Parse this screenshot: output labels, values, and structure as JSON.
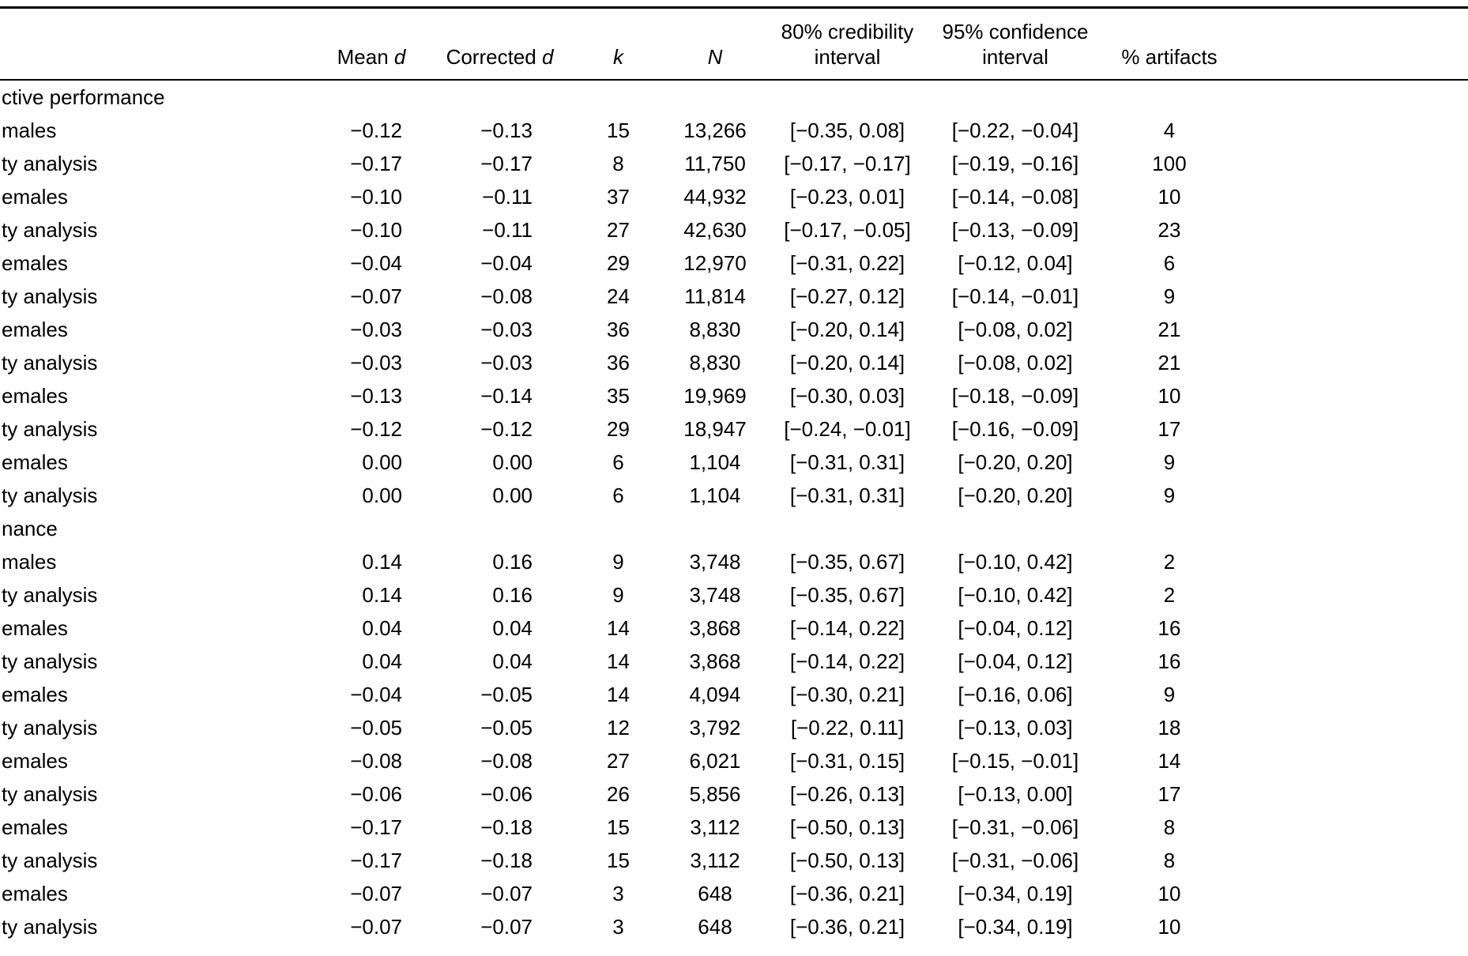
{
  "colors": {
    "background": "#ffffff",
    "text": "#000000",
    "rule": "#000000"
  },
  "table": {
    "columns": [
      {
        "pre": "Mean",
        "italic": "d"
      },
      {
        "pre": "Corrected",
        "italic": "d"
      },
      {
        "pre": "",
        "italic": "k"
      },
      {
        "pre": "",
        "italic": "N"
      },
      {
        "pre": "80% credibility interval",
        "italic": ""
      },
      {
        "pre": "95% confidence interval",
        "italic": ""
      },
      {
        "pre": "% artifacts",
        "italic": ""
      }
    ],
    "rows": [
      {
        "label": "ctive performance",
        "section": true,
        "values": [
          "",
          "",
          "",
          "",
          "",
          "",
          ""
        ]
      },
      {
        "label": "males",
        "section": false,
        "values": [
          "−0.12",
          "−0.13",
          "15",
          "13,266",
          "[−0.35, 0.08]",
          "[−0.22, −0.04]",
          "4"
        ]
      },
      {
        "label": "ty analysis",
        "section": false,
        "values": [
          "−0.17",
          "−0.17",
          "8",
          "11,750",
          "[−0.17, −0.17]",
          "[−0.19, −0.16]",
          "100"
        ]
      },
      {
        "label": "emales",
        "section": false,
        "values": [
          "−0.10",
          "−0.11",
          "37",
          "44,932",
          "[−0.23, 0.01]",
          "[−0.14, −0.08]",
          "10"
        ]
      },
      {
        "label": "ty analysis",
        "section": false,
        "values": [
          "−0.10",
          "−0.11",
          "27",
          "42,630",
          "[−0.17, −0.05]",
          "[−0.13, −0.09]",
          "23"
        ]
      },
      {
        "label": "emales",
        "section": false,
        "values": [
          "−0.04",
          "−0.04",
          "29",
          "12,970",
          "[−0.31, 0.22]",
          "[−0.12, 0.04]",
          "6"
        ]
      },
      {
        "label": "ty analysis",
        "section": false,
        "values": [
          "−0.07",
          "−0.08",
          "24",
          "11,814",
          "[−0.27, 0.12]",
          "[−0.14, −0.01]",
          "9"
        ]
      },
      {
        "label": "emales",
        "section": false,
        "values": [
          "−0.03",
          "−0.03",
          "36",
          "8,830",
          "[−0.20, 0.14]",
          "[−0.08, 0.02]",
          "21"
        ]
      },
      {
        "label": "ty analysis",
        "section": false,
        "values": [
          "−0.03",
          "−0.03",
          "36",
          "8,830",
          "[−0.20, 0.14]",
          "[−0.08, 0.02]",
          "21"
        ]
      },
      {
        "label": "emales",
        "section": false,
        "values": [
          "−0.13",
          "−0.14",
          "35",
          "19,969",
          "[−0.30, 0.03]",
          "[−0.18, −0.09]",
          "10"
        ]
      },
      {
        "label": "ty analysis",
        "section": false,
        "values": [
          "−0.12",
          "−0.12",
          "29",
          "18,947",
          "[−0.24, −0.01]",
          "[−0.16, −0.09]",
          "17"
        ]
      },
      {
        "label": "emales",
        "section": false,
        "values": [
          "0.00",
          "0.00",
          "6",
          "1,104",
          "[−0.31, 0.31]",
          "[−0.20, 0.20]",
          "9"
        ]
      },
      {
        "label": "ty analysis",
        "section": false,
        "values": [
          "0.00",
          "0.00",
          "6",
          "1,104",
          "[−0.31, 0.31]",
          "[−0.20, 0.20]",
          "9"
        ]
      },
      {
        "label": "nance",
        "section": true,
        "values": [
          "",
          "",
          "",
          "",
          "",
          "",
          ""
        ]
      },
      {
        "label": "males",
        "section": false,
        "values": [
          "0.14",
          "0.16",
          "9",
          "3,748",
          "[−0.35, 0.67]",
          "[−0.10, 0.42]",
          "2"
        ]
      },
      {
        "label": "ty analysis",
        "section": false,
        "values": [
          "0.14",
          "0.16",
          "9",
          "3,748",
          "[−0.35, 0.67]",
          "[−0.10, 0.42]",
          "2"
        ]
      },
      {
        "label": "emales",
        "section": false,
        "values": [
          "0.04",
          "0.04",
          "14",
          "3,868",
          "[−0.14, 0.22]",
          "[−0.04, 0.12]",
          "16"
        ]
      },
      {
        "label": "ty analysis",
        "section": false,
        "values": [
          "0.04",
          "0.04",
          "14",
          "3,868",
          "[−0.14, 0.22]",
          "[−0.04, 0.12]",
          "16"
        ]
      },
      {
        "label": "emales",
        "section": false,
        "values": [
          "−0.04",
          "−0.05",
          "14",
          "4,094",
          "[−0.30, 0.21]",
          "[−0.16, 0.06]",
          "9"
        ]
      },
      {
        "label": "ty analysis",
        "section": false,
        "values": [
          "−0.05",
          "−0.05",
          "12",
          "3,792",
          "[−0.22, 0.11]",
          "[−0.13, 0.03]",
          "18"
        ]
      },
      {
        "label": "emales",
        "section": false,
        "values": [
          "−0.08",
          "−0.08",
          "27",
          "6,021",
          "[−0.31, 0.15]",
          "[−0.15, −0.01]",
          "14"
        ]
      },
      {
        "label": "ty analysis",
        "section": false,
        "values": [
          "−0.06",
          "−0.06",
          "26",
          "5,856",
          "[−0.26, 0.13]",
          "[−0.13, 0.00]",
          "17"
        ]
      },
      {
        "label": "emales",
        "section": false,
        "values": [
          "−0.17",
          "−0.18",
          "15",
          "3,112",
          "[−0.50, 0.13]",
          "[−0.31, −0.06]",
          "8"
        ]
      },
      {
        "label": "ty analysis",
        "section": false,
        "values": [
          "−0.17",
          "−0.18",
          "15",
          "3,112",
          "[−0.50, 0.13]",
          "[−0.31, −0.06]",
          "8"
        ]
      },
      {
        "label": "emales",
        "section": false,
        "values": [
          "−0.07",
          "−0.07",
          "3",
          "648",
          "[−0.36, 0.21]",
          "[−0.34, 0.19]",
          "10"
        ]
      },
      {
        "label": "ty analysis",
        "section": false,
        "values": [
          "−0.07",
          "−0.07",
          "3",
          "648",
          "[−0.36, 0.21]",
          "[−0.34, 0.19]",
          "10"
        ]
      }
    ]
  }
}
